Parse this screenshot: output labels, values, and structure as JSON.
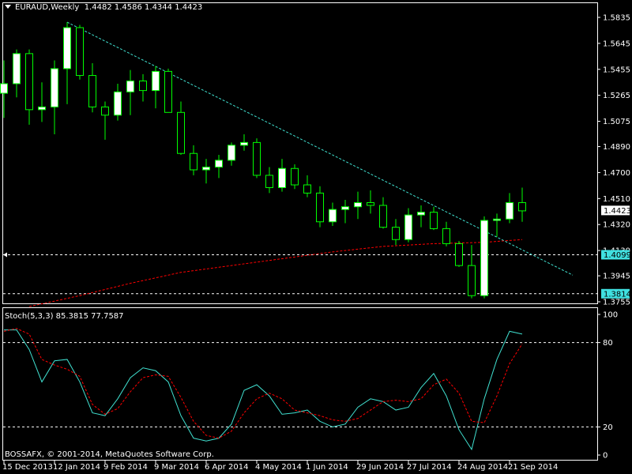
{
  "chart_header": {
    "symbol": "EURAUD,Weekly",
    "ohlc": "1.4482 1.4586 1.4344 1.4423"
  },
  "indicator_header": "Stoch(5,3,3) 85.3815 77.7587",
  "copyright": "BOSSAFX, © 2001-2014, MetaQuotes Software Corp.",
  "colors": {
    "background": "#000000",
    "frame": "#ffffff",
    "bull_fill": "#ffffff",
    "bear_fill": "#000000",
    "wick": "#00ff00",
    "trendline": "#40e0d0",
    "moving_average": "#ff0000",
    "stoch_main": "#40e0d0",
    "stoch_signal": "#ff0000",
    "label_bg_current": "#ffffff",
    "label_bg_cyan": "#40e0e0"
  },
  "chart_data": [
    {
      "type": "candlestick",
      "title": "EURAUD,Weekly",
      "ylim": [
        1.3755,
        1.5835
      ],
      "y_ticks": [
        "1.5835",
        "1.5645",
        "1.5455",
        "1.5265",
        "1.5075",
        "1.4890",
        "1.4700",
        "1.4510",
        "1.4320",
        "1.4130",
        "1.3945",
        "1.3755"
      ],
      "x_ticks": [
        "15 Dec 2013",
        "12 Jan 2014",
        "9 Feb 2014",
        "9 Mar 2014",
        "6 Apr 2014",
        "4 May 2014",
        "1 Jun 2014",
        "29 Jun 2014",
        "27 Jul 2014",
        "24 Aug 2014",
        "21 Sep 2014"
      ],
      "price_labels": {
        "current": "1.4423",
        "level_1": "1.4099",
        "level_2": "1.3814"
      },
      "horizontal_lines": [
        1.4099,
        1.3814
      ],
      "candles": [
        {
          "o": 1.528,
          "h": 1.552,
          "l": 1.51,
          "c": 1.535
        },
        {
          "o": 1.535,
          "h": 1.56,
          "l": 1.525,
          "c": 1.557
        },
        {
          "o": 1.557,
          "h": 1.56,
          "l": 1.505,
          "c": 1.516
        },
        {
          "o": 1.516,
          "h": 1.536,
          "l": 1.507,
          "c": 1.518
        },
        {
          "o": 1.518,
          "h": 1.552,
          "l": 1.498,
          "c": 1.546
        },
        {
          "o": 1.546,
          "h": 1.58,
          "l": 1.52,
          "c": 1.576
        },
        {
          "o": 1.576,
          "h": 1.578,
          "l": 1.538,
          "c": 1.541
        },
        {
          "o": 1.541,
          "h": 1.55,
          "l": 1.514,
          "c": 1.518
        },
        {
          "o": 1.518,
          "h": 1.522,
          "l": 1.494,
          "c": 1.512
        },
        {
          "o": 1.512,
          "h": 1.535,
          "l": 1.508,
          "c": 1.529
        },
        {
          "o": 1.529,
          "h": 1.545,
          "l": 1.512,
          "c": 1.537
        },
        {
          "o": 1.537,
          "h": 1.542,
          "l": 1.522,
          "c": 1.53
        },
        {
          "o": 1.53,
          "h": 1.548,
          "l": 1.517,
          "c": 1.544
        },
        {
          "o": 1.544,
          "h": 1.546,
          "l": 1.514,
          "c": 1.514
        },
        {
          "o": 1.514,
          "h": 1.522,
          "l": 1.483,
          "c": 1.484
        },
        {
          "o": 1.484,
          "h": 1.49,
          "l": 1.468,
          "c": 1.472
        },
        {
          "o": 1.472,
          "h": 1.48,
          "l": 1.462,
          "c": 1.474
        },
        {
          "o": 1.474,
          "h": 1.483,
          "l": 1.466,
          "c": 1.479
        },
        {
          "o": 1.479,
          "h": 1.492,
          "l": 1.475,
          "c": 1.49
        },
        {
          "o": 1.49,
          "h": 1.498,
          "l": 1.486,
          "c": 1.492
        },
        {
          "o": 1.492,
          "h": 1.495,
          "l": 1.466,
          "c": 1.468
        },
        {
          "o": 1.468,
          "h": 1.474,
          "l": 1.455,
          "c": 1.459
        },
        {
          "o": 1.459,
          "h": 1.48,
          "l": 1.456,
          "c": 1.473
        },
        {
          "o": 1.473,
          "h": 1.476,
          "l": 1.458,
          "c": 1.461
        },
        {
          "o": 1.461,
          "h": 1.468,
          "l": 1.452,
          "c": 1.455
        },
        {
          "o": 1.455,
          "h": 1.46,
          "l": 1.43,
          "c": 1.434
        },
        {
          "o": 1.434,
          "h": 1.448,
          "l": 1.431,
          "c": 1.443
        },
        {
          "o": 1.443,
          "h": 1.45,
          "l": 1.433,
          "c": 1.445
        },
        {
          "o": 1.445,
          "h": 1.456,
          "l": 1.436,
          "c": 1.448
        },
        {
          "o": 1.448,
          "h": 1.457,
          "l": 1.44,
          "c": 1.446
        },
        {
          "o": 1.446,
          "h": 1.452,
          "l": 1.429,
          "c": 1.43
        },
        {
          "o": 1.43,
          "h": 1.436,
          "l": 1.417,
          "c": 1.421
        },
        {
          "o": 1.421,
          "h": 1.444,
          "l": 1.419,
          "c": 1.439
        },
        {
          "o": 1.439,
          "h": 1.446,
          "l": 1.43,
          "c": 1.441
        },
        {
          "o": 1.441,
          "h": 1.445,
          "l": 1.428,
          "c": 1.429
        },
        {
          "o": 1.429,
          "h": 1.434,
          "l": 1.416,
          "c": 1.418
        },
        {
          "o": 1.418,
          "h": 1.42,
          "l": 1.401,
          "c": 1.402
        },
        {
          "o": 1.402,
          "h": 1.417,
          "l": 1.378,
          "c": 1.38
        },
        {
          "o": 1.38,
          "h": 1.438,
          "l": 1.378,
          "c": 1.435
        },
        {
          "o": 1.435,
          "h": 1.44,
          "l": 1.423,
          "c": 1.436
        },
        {
          "o": 1.436,
          "h": 1.455,
          "l": 1.433,
          "c": 1.448
        },
        {
          "o": 1.448,
          "h": 1.459,
          "l": 1.434,
          "c": 1.442
        }
      ],
      "trendline": {
        "from_index": 5,
        "from_value": 1.58,
        "to_index": 45,
        "to_value": 1.395
      },
      "moving_average": [
        {
          "i": 2,
          "v": 1.372
        },
        {
          "i": 6,
          "v": 1.38
        },
        {
          "i": 10,
          "v": 1.389
        },
        {
          "i": 14,
          "v": 1.397
        },
        {
          "i": 18,
          "v": 1.402
        },
        {
          "i": 22,
          "v": 1.407
        },
        {
          "i": 26,
          "v": 1.412
        },
        {
          "i": 30,
          "v": 1.416
        },
        {
          "i": 34,
          "v": 1.418
        },
        {
          "i": 38,
          "v": 1.419
        },
        {
          "i": 41,
          "v": 1.421
        }
      ]
    },
    {
      "type": "line",
      "title": "Stoch(5,3,3) 85.3815 77.7587",
      "ylim": [
        0,
        100
      ],
      "y_ticks": [
        "100",
        "80",
        "20",
        "0"
      ],
      "levels": [
        80,
        20
      ],
      "series": [
        {
          "values": [
            89,
            89,
            75,
            52,
            67,
            68,
            52,
            30,
            28,
            40,
            55,
            62,
            60,
            52,
            28,
            12,
            10,
            12,
            22,
            46,
            50,
            42,
            29,
            30,
            32,
            24,
            20,
            22,
            34,
            40,
            38,
            32,
            34,
            48,
            58,
            42,
            18,
            4,
            40,
            68,
            88,
            86
          ]
        },
        {
          "values": [
            88,
            90,
            86,
            68,
            64,
            61,
            56,
            36,
            29,
            33,
            45,
            55,
            57,
            56,
            41,
            24,
            14,
            12,
            17,
            30,
            40,
            44,
            40,
            32,
            30,
            28,
            25,
            24,
            26,
            32,
            38,
            39,
            38,
            40,
            50,
            54,
            44,
            24,
            23,
            42,
            65,
            79
          ]
        }
      ]
    }
  ]
}
